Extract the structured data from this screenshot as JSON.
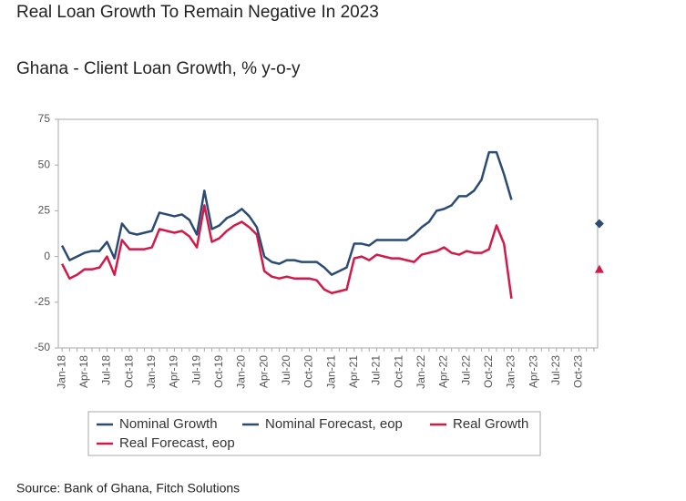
{
  "chart_data": {
    "type": "line",
    "title": "Real Loan Growth To Remain Negative In 2023",
    "subtitle": "Ghana - Client Loan Growth, % y-o-y",
    "source": "Source: Bank of Ghana, Fitch Solutions",
    "categories": [
      "Jan-18",
      null,
      null,
      "Apr-18",
      null,
      null,
      "Jul-18",
      null,
      null,
      "Oct-18",
      null,
      null,
      "Jan-19",
      null,
      null,
      "Apr-19",
      null,
      null,
      "Jul-19",
      null,
      null,
      "Oct-19",
      null,
      null,
      "Jan-20",
      null,
      null,
      "Apr-20",
      null,
      null,
      "Jul-20",
      null,
      null,
      "Oct-20",
      null,
      null,
      "Jan-21",
      null,
      null,
      "Apr-21",
      null,
      null,
      "Jul-21",
      null,
      null,
      "Oct-21",
      null,
      null,
      "Jan-22",
      null,
      null,
      "Apr-22",
      null,
      null,
      "Jul-22",
      null,
      null,
      "Oct-22",
      null,
      null,
      "Jan-23",
      null,
      null,
      "Apr-23",
      null,
      null,
      "Jul-23",
      null,
      null,
      "Oct-23",
      null,
      null
    ],
    "ylim": [
      -50,
      75
    ],
    "yticks": [
      -50,
      -25,
      0,
      25,
      50,
      75
    ],
    "grid": false,
    "series": [
      {
        "name": "Nominal Growth",
        "color": "#2b4b75",
        "marker": "line",
        "values": [
          6,
          -2,
          0,
          2,
          3,
          3,
          8,
          -1,
          18,
          13,
          12,
          13,
          14,
          24,
          23,
          22,
          23,
          20,
          12,
          36,
          15,
          17,
          21,
          23,
          26,
          22,
          16,
          0,
          -3,
          -4,
          -2,
          -2,
          -3,
          -3,
          -3,
          -6,
          -10,
          -8,
          -6,
          7,
          7,
          6,
          9,
          9,
          9,
          9,
          9,
          12,
          16,
          19,
          25,
          26,
          28,
          33,
          33,
          36,
          42,
          57,
          57,
          45,
          31,
          null,
          null,
          null,
          null,
          null,
          null,
          null,
          null,
          null,
          null,
          null
        ]
      },
      {
        "name": "Nominal Forecast, eop",
        "color": "#2b4b75",
        "marker": "diamond",
        "values": [
          null,
          null,
          null,
          null,
          null,
          null,
          null,
          null,
          null,
          null,
          null,
          null,
          null,
          null,
          null,
          null,
          null,
          null,
          null,
          null,
          null,
          null,
          null,
          null,
          null,
          null,
          null,
          null,
          null,
          null,
          null,
          null,
          null,
          null,
          null,
          null,
          null,
          null,
          null,
          null,
          null,
          null,
          null,
          null,
          null,
          null,
          null,
          null,
          null,
          null,
          null,
          null,
          null,
          null,
          null,
          null,
          null,
          null,
          null,
          null,
          null,
          null,
          null,
          null,
          null,
          null,
          null,
          null,
          null,
          null,
          null,
          18
        ]
      },
      {
        "name": "Real Growth",
        "color": "#d11a48",
        "marker": "line",
        "values": [
          -4,
          -12,
          -10,
          -7,
          -7,
          -6,
          0,
          -10,
          9,
          4,
          4,
          4,
          5,
          15,
          14,
          13,
          14,
          11,
          5,
          28,
          8,
          10,
          14,
          17,
          19,
          16,
          12,
          -8,
          -11,
          -12,
          -11,
          -12,
          -12,
          -12,
          -13,
          -18,
          -20,
          -19,
          -18,
          -1,
          0,
          -2,
          1,
          0,
          -1,
          -1,
          -2,
          -3,
          1,
          2,
          3,
          5,
          2,
          1,
          3,
          2,
          2,
          4,
          17,
          7,
          -23,
          null,
          null,
          null,
          null,
          null,
          null,
          null,
          null,
          null,
          null,
          null
        ]
      },
      {
        "name": "Real Forecast, eop",
        "color": "#d11a48",
        "marker": "triangle",
        "values": [
          null,
          null,
          null,
          null,
          null,
          null,
          null,
          null,
          null,
          null,
          null,
          null,
          null,
          null,
          null,
          null,
          null,
          null,
          null,
          null,
          null,
          null,
          null,
          null,
          null,
          null,
          null,
          null,
          null,
          null,
          null,
          null,
          null,
          null,
          null,
          null,
          null,
          null,
          null,
          null,
          null,
          null,
          null,
          null,
          null,
          null,
          null,
          null,
          null,
          null,
          null,
          null,
          null,
          null,
          null,
          null,
          null,
          null,
          null,
          null,
          null,
          null,
          null,
          null,
          null,
          null,
          null,
          null,
          null,
          null,
          null,
          -7
        ]
      }
    ]
  }
}
